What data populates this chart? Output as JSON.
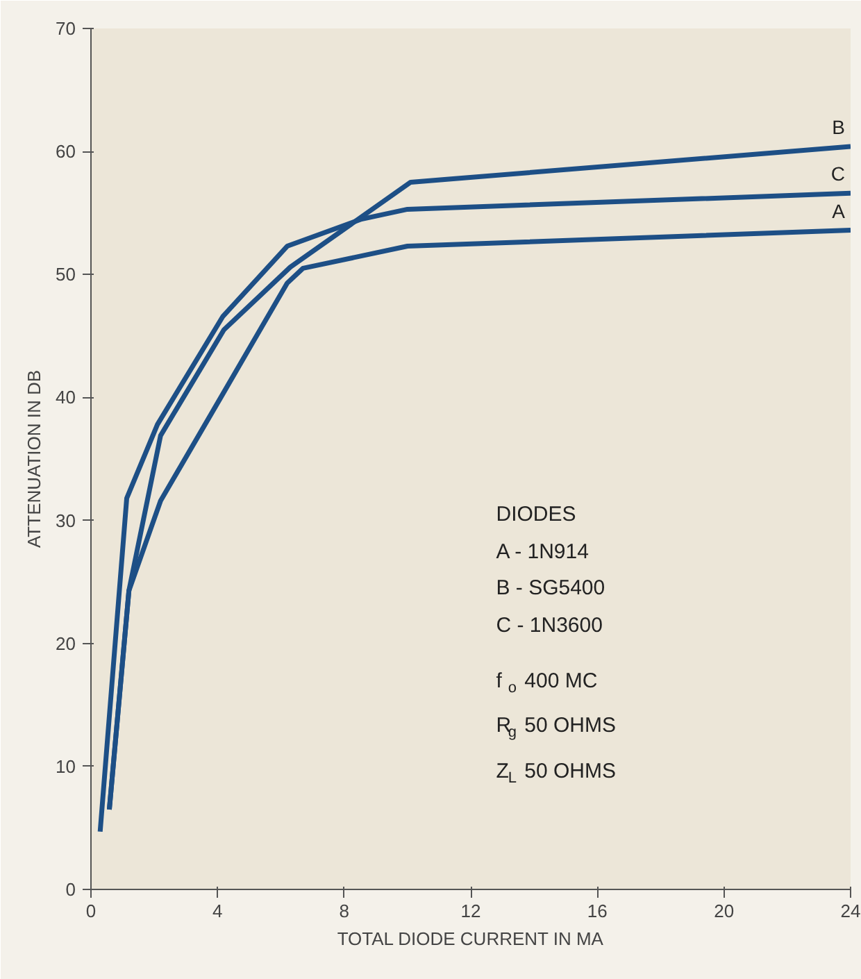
{
  "chart_data": {
    "type": "line",
    "xlabel": "TOTAL DIODE CURRENT IN MA",
    "ylabel": "ATTENUATION IN DB",
    "xlim": [
      0,
      24
    ],
    "ylim": [
      0,
      70
    ],
    "xticks": [
      0,
      4,
      8,
      12,
      16,
      20,
      24
    ],
    "yticks": [
      0,
      10,
      20,
      30,
      40,
      50,
      60,
      70
    ],
    "grid": false,
    "marker": "none",
    "line_style": "solid",
    "series": [
      {
        "name": "A",
        "color": "#1d4f86",
        "x": [
          0.58,
          1.2,
          2.2,
          4.17,
          6.2,
          6.7,
          10,
          24
        ],
        "values": [
          6.5,
          24.3,
          31.6,
          40.3,
          49.3,
          50.5,
          52.3,
          53.6
        ]
      },
      {
        "name": "B",
        "color": "#1d4f86",
        "x": [
          0.58,
          1.2,
          2.2,
          4.2,
          6.3,
          10.1,
          24
        ],
        "values": [
          6.5,
          24.3,
          36.9,
          45.5,
          50.6,
          57.5,
          60.4
        ]
      },
      {
        "name": "C",
        "color": "#1d4f86",
        "x": [
          0.29,
          1.13,
          2.1,
          4.17,
          6.2,
          8.55,
          10,
          24
        ],
        "values": [
          4.7,
          31.8,
          37.8,
          46.6,
          52.3,
          54.5,
          55.3,
          56.6
        ]
      }
    ],
    "annotations": [
      "DIODES",
      "A - 1N914",
      "B - SG5400",
      "C - 1N3600",
      "f$_{o}$ 400 MC",
      "R$_{g}$ 50 OHMS",
      "Z$_{L}$ 50 OHMS"
    ]
  }
}
